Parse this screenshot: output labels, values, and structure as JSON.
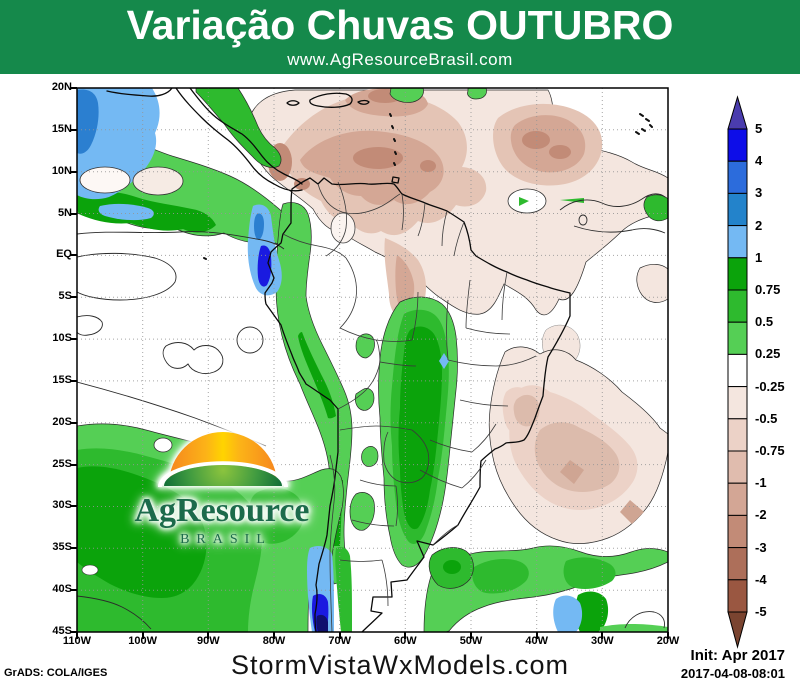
{
  "header": {
    "title": "Variação Chuvas OUTUBRO",
    "subtitle": "www.AgResourceBrasil.com"
  },
  "map": {
    "lat_labels": [
      "20N",
      "15N",
      "10N",
      "5N",
      "EQ",
      "5S",
      "10S",
      "15S",
      "20S",
      "25S",
      "30S",
      "35S",
      "40S",
      "45S"
    ],
    "lon_labels": [
      "110W",
      "100W",
      "90W",
      "80W",
      "70W",
      "60W",
      "50W",
      "40W",
      "30W",
      "20W"
    ]
  },
  "colorbar": {
    "levels": [
      "5",
      "4",
      "3",
      "2",
      "1",
      "0.75",
      "0.5",
      "0.25",
      "-0.25",
      "-0.5",
      "-0.75",
      "-1",
      "-2",
      "-3",
      "-4",
      "-5"
    ],
    "segment_colors": [
      "#0d0de8",
      "#2c6cdc",
      "#2383cb",
      "#74b9f3",
      "#0ba30b",
      "#2eba2e",
      "#55cf55",
      "#ffffff",
      "#f4e6df",
      "#ecd2c7",
      "#e0bcae",
      "#d3a695",
      "#c28b77",
      "#ad6f5a",
      "#9a5741"
    ],
    "top_arrow_color": "#4a3cae",
    "bottom_arrow_color": "#7a4430"
  },
  "watermark": {
    "brand": "AgResource",
    "country": "BRASIL"
  },
  "footer": {
    "credit": "GrADS: COLA/IGES",
    "site": "StormVistaWxModels.com",
    "init_line1": "Init: Apr 2017",
    "init_line2": "2017-04-08-08:01"
  },
  "theme": {
    "header_green": "#15894B",
    "logo_green": "#1C6B4B"
  }
}
